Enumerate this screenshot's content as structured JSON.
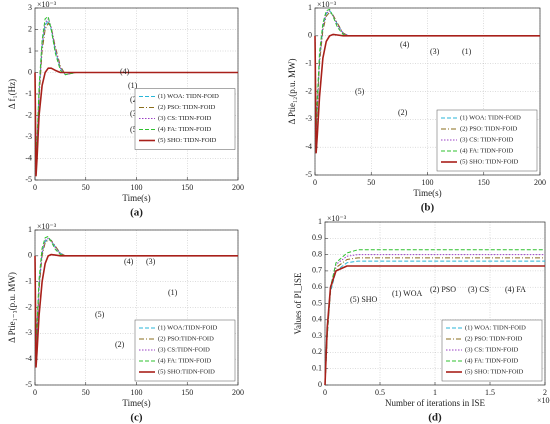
{
  "chart_data": [
    {
      "type": "line",
      "panel_label": "(a)",
      "xlabel": "Time(s)",
      "ylabel": "Δ f₁(Hz)",
      "y_exponent": "×10⁻³",
      "x": [
        0,
        1,
        2,
        4,
        7,
        10,
        13,
        16,
        20,
        25,
        30,
        40,
        60,
        100,
        150,
        200
      ],
      "xlim": [
        0,
        200
      ],
      "xticks": [
        0,
        50,
        100,
        150,
        200
      ],
      "ylim": [
        -5,
        3
      ],
      "yticks": [
        -5,
        -4,
        -3,
        -2,
        -1,
        0,
        1,
        2,
        3
      ],
      "grid": true,
      "legend_loc": "center right",
      "annotations": [
        "(4)",
        "(1)",
        "(2)",
        "(3)",
        "(5)"
      ],
      "series": [
        {
          "name": "(1) WOA: TIDN-FOID",
          "color": "#29b6d8",
          "style": "dashed",
          "values": [
            0,
            -4.6,
            -3.5,
            -1,
            1.2,
            2.2,
            2.4,
            2.0,
            1.0,
            0.2,
            -0.1,
            0,
            0,
            0,
            0,
            0
          ]
        },
        {
          "name": "(2) PSO: TIDN-FOID",
          "color": "#8a6d1c",
          "style": "dashdot",
          "values": [
            0,
            -4.7,
            -3.6,
            -1.2,
            1.0,
            2.0,
            2.3,
            2.1,
            1.2,
            0.3,
            -0.1,
            0,
            0,
            0,
            0,
            0
          ]
        },
        {
          "name": "(3) CS: TIDN-FOID",
          "color": "#9a3fc4",
          "style": "dotted",
          "values": [
            0,
            -4.6,
            -3.4,
            -0.9,
            1.3,
            2.3,
            2.5,
            2.1,
            1.1,
            0.2,
            -0.1,
            0,
            0,
            0,
            0,
            0
          ]
        },
        {
          "name": "(4) FA: TIDN-FOID",
          "color": "#2fc12f",
          "style": "dashed",
          "values": [
            0,
            -4.5,
            -3.2,
            -0.7,
            1.5,
            2.5,
            2.6,
            2.0,
            0.9,
            0.1,
            -0.1,
            0,
            0,
            0,
            0,
            0
          ]
        },
        {
          "name": "(5) SHO: TIDN-FOID",
          "color": "#a8201a",
          "style": "solid",
          "values": [
            0,
            -4.8,
            -4.0,
            -2.0,
            -0.6,
            0,
            0.2,
            0.2,
            0.1,
            0,
            0,
            0,
            0,
            0,
            0,
            0
          ]
        }
      ]
    },
    {
      "type": "line",
      "panel_label": "(b)",
      "xlabel": "Time(s)",
      "ylabel": "Δ Ptie₁₂(p.u. MW)",
      "y_exponent": "×10⁻³",
      "x": [
        0,
        1,
        2,
        4,
        7,
        10,
        13,
        16,
        20,
        25,
        30,
        40,
        60,
        100,
        150,
        200
      ],
      "xlim": [
        0,
        200
      ],
      "xticks": [
        0,
        50,
        100,
        150,
        200
      ],
      "ylim": [
        -5,
        1
      ],
      "yticks": [
        -5,
        -4,
        -3,
        -2,
        -1,
        0,
        1
      ],
      "grid": true,
      "legend_loc": "lower right",
      "annotations": [
        "(4)",
        "(3)",
        "(1)",
        "(5)",
        "(2)"
      ],
      "series": [
        {
          "name": "(1) WOA: TIDN-FOID",
          "color": "#29b6d8",
          "style": "dashed",
          "values": [
            0,
            -3.5,
            -2.6,
            -0.9,
            0.3,
            0.8,
            0.9,
            0.75,
            0.4,
            0.1,
            0,
            0,
            0,
            0,
            0,
            0
          ]
        },
        {
          "name": "(2) PSO: TIDN-FOID",
          "color": "#8a6d1c",
          "style": "dashdot",
          "values": [
            0,
            -3.6,
            -2.7,
            -1.0,
            0.2,
            0.7,
            0.85,
            0.75,
            0.45,
            0.1,
            0,
            0,
            0,
            0,
            0,
            0
          ]
        },
        {
          "name": "(3) CS: TIDN-FOID",
          "color": "#9a3fc4",
          "style": "dotted",
          "values": [
            0,
            -3.4,
            -2.5,
            -0.8,
            0.35,
            0.82,
            0.9,
            0.72,
            0.38,
            0.08,
            0,
            0,
            0,
            0,
            0,
            0
          ]
        },
        {
          "name": "(4) FA: TIDN-FOID",
          "color": "#2fc12f",
          "style": "dashed",
          "values": [
            0,
            -3.3,
            -2.3,
            -0.6,
            0.45,
            0.9,
            0.95,
            0.7,
            0.3,
            0.05,
            0,
            0,
            0,
            0,
            0,
            0
          ]
        },
        {
          "name": "(5) SHO: TIDN-FOID",
          "color": "#a8201a",
          "style": "solid",
          "values": [
            0,
            -4.2,
            -3.6,
            -2.2,
            -0.8,
            -0.2,
            0,
            0.05,
            0.03,
            0,
            0,
            0,
            0,
            0,
            0,
            0
          ]
        }
      ]
    },
    {
      "type": "line",
      "panel_label": "(c)",
      "xlabel": "Time(s)",
      "ylabel": "Δ Ptie₁₋₃(p.u. MW)",
      "y_exponent": "×10⁻³",
      "x": [
        0,
        1,
        2,
        4,
        7,
        10,
        13,
        16,
        20,
        25,
        30,
        40,
        60,
        100,
        150,
        200
      ],
      "xlim": [
        0,
        200
      ],
      "xticks": [
        0,
        50,
        100,
        150,
        200
      ],
      "ylim": [
        -5,
        1
      ],
      "yticks": [
        -5,
        -4,
        -3,
        -2,
        -1,
        0,
        1
      ],
      "grid": true,
      "legend_loc": "lower right",
      "annotations": [
        "(4)",
        "(3)",
        "(1)",
        "(5)",
        "(2)"
      ],
      "series": [
        {
          "name": "(1) WOA:TIDN-FOID",
          "color": "#29b6d8",
          "style": "dashed",
          "values": [
            0,
            -3.8,
            -2.9,
            -1.2,
            0.1,
            0.55,
            0.65,
            0.6,
            0.35,
            0.1,
            0,
            0,
            0,
            0,
            0,
            0
          ]
        },
        {
          "name": "(2) PSO:TIDN-FOID",
          "color": "#8a6d1c",
          "style": "dashdot",
          "values": [
            0,
            -3.9,
            -3.0,
            -1.3,
            0.0,
            0.5,
            0.62,
            0.6,
            0.38,
            0.1,
            0,
            0,
            0,
            0,
            0,
            0
          ]
        },
        {
          "name": "(3) CS:TIDN-FOID",
          "color": "#9a3fc4",
          "style": "dotted",
          "values": [
            0,
            -3.7,
            -2.8,
            -1.1,
            0.15,
            0.6,
            0.68,
            0.58,
            0.32,
            0.08,
            0,
            0,
            0,
            0,
            0,
            0
          ]
        },
        {
          "name": "(4) FA: TIDN-FOID",
          "color": "#2fc12f",
          "style": "dashed",
          "values": [
            0,
            -3.6,
            -2.6,
            -0.9,
            0.3,
            0.7,
            0.75,
            0.55,
            0.25,
            0.05,
            0,
            0,
            0,
            0,
            0,
            0
          ]
        },
        {
          "name": "(5) SHO:TIDN-FOID",
          "color": "#a8201a",
          "style": "solid",
          "values": [
            0,
            -4.3,
            -3.7,
            -2.3,
            -1.0,
            -0.3,
            0,
            0.05,
            0.03,
            0,
            0,
            0,
            0,
            0,
            0,
            0
          ]
        }
      ]
    },
    {
      "type": "line",
      "panel_label": "(d)",
      "xlabel": "Number of iterations in ISE",
      "ylabel": "Values of PI_ISE",
      "y_exponent": "×10⁻³",
      "x_exponent": "×10⁴",
      "x": [
        0,
        0.02,
        0.05,
        0.1,
        0.2,
        0.3,
        0.5,
        1,
        1.5,
        2
      ],
      "xlim": [
        0,
        2
      ],
      "xticks": [
        0,
        0.5,
        1,
        1.5,
        2
      ],
      "ylim": [
        0,
        1
      ],
      "yticks": [
        0,
        0.1,
        0.2,
        0.3,
        0.4,
        0.5,
        0.6,
        0.7,
        0.8,
        0.9,
        1
      ],
      "grid": true,
      "legend_loc": "lower right",
      "annotations": [
        "(5) SHO",
        "(1) WOA",
        "(2) PSO",
        "(3) CS",
        "(4) FA"
      ],
      "series": [
        {
          "name": "(1) WOA: TIDN-FOID",
          "color": "#29b6d8",
          "style": "dashed",
          "values": [
            0,
            0.3,
            0.57,
            0.7,
            0.75,
            0.76,
            0.76,
            0.76,
            0.76,
            0.76
          ]
        },
        {
          "name": "(2) PSO: TIDN-FOID",
          "color": "#8a6d1c",
          "style": "dashdot",
          "values": [
            0,
            0.3,
            0.58,
            0.72,
            0.77,
            0.78,
            0.78,
            0.78,
            0.78,
            0.78
          ]
        },
        {
          "name": "(3) CS: TIDN-FOID",
          "color": "#9a3fc4",
          "style": "dotted",
          "values": [
            0,
            0.3,
            0.6,
            0.74,
            0.79,
            0.8,
            0.8,
            0.8,
            0.8,
            0.8
          ]
        },
        {
          "name": "(4) FA: TIDN-FOID",
          "color": "#2fc12f",
          "style": "dashed",
          "values": [
            0,
            0.3,
            0.6,
            0.75,
            0.81,
            0.83,
            0.83,
            0.83,
            0.83,
            0.83
          ]
        },
        {
          "name": "(5) SHO: TIDN-FOID",
          "color": "#a8201a",
          "style": "solid",
          "values": [
            0,
            0.35,
            0.6,
            0.7,
            0.73,
            0.73,
            0.73,
            0.73,
            0.73,
            0.73
          ]
        }
      ]
    }
  ]
}
